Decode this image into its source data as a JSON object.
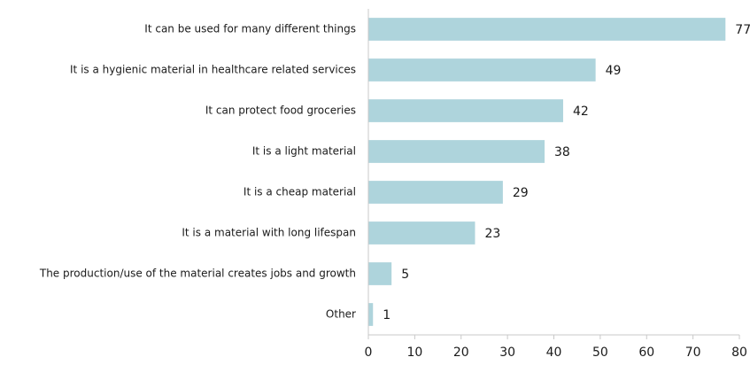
{
  "chart_data": {
    "type": "bar",
    "orientation": "horizontal",
    "categories": [
      "It can be used for many different things",
      "It is a hygienic material in healthcare related services",
      "It can protect food groceries",
      "It is a light material",
      "It is a cheap material",
      "It is a material with long lifespan",
      "The production/use of the material creates jobs and growth",
      "Other"
    ],
    "values": [
      77,
      49,
      42,
      38,
      29,
      23,
      5,
      1
    ],
    "value_labels": [
      "77",
      "49",
      "42",
      "38",
      "29",
      "23",
      "5",
      "1"
    ],
    "title": "",
    "xlabel": "",
    "ylabel": "",
    "xlim": [
      0,
      80
    ],
    "xticks": [
      0,
      10,
      20,
      30,
      40,
      50,
      60,
      70,
      80
    ],
    "xtick_labels": [
      "0",
      "10",
      "20",
      "30",
      "40",
      "50",
      "60",
      "70",
      "80"
    ],
    "grid": false,
    "legend": false,
    "colors": {
      "bar": "#aed4dc",
      "axis": "#c8c8c8",
      "text": "#1a1a1a"
    }
  }
}
